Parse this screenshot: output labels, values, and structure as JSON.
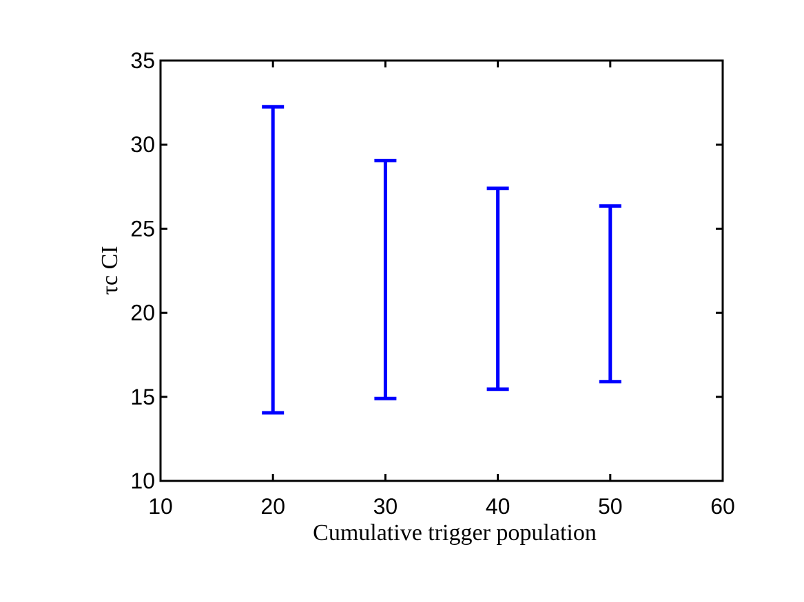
{
  "chart_data": {
    "type": "interval",
    "xlabel": "Cumulative trigger population",
    "ylabel": "τc CI",
    "x": [
      20,
      30,
      40,
      50
    ],
    "lower": [
      14.05,
      14.9,
      15.45,
      15.9
    ],
    "upper": [
      32.25,
      29.05,
      27.4,
      26.35
    ],
    "color": "#0000ff",
    "xlim": [
      10,
      60
    ],
    "xticks": [
      10,
      20,
      30,
      40,
      50,
      60
    ],
    "ylim": [
      10,
      35
    ],
    "yticks": [
      10,
      15,
      20,
      25,
      30,
      35
    ],
    "grid": false
  }
}
